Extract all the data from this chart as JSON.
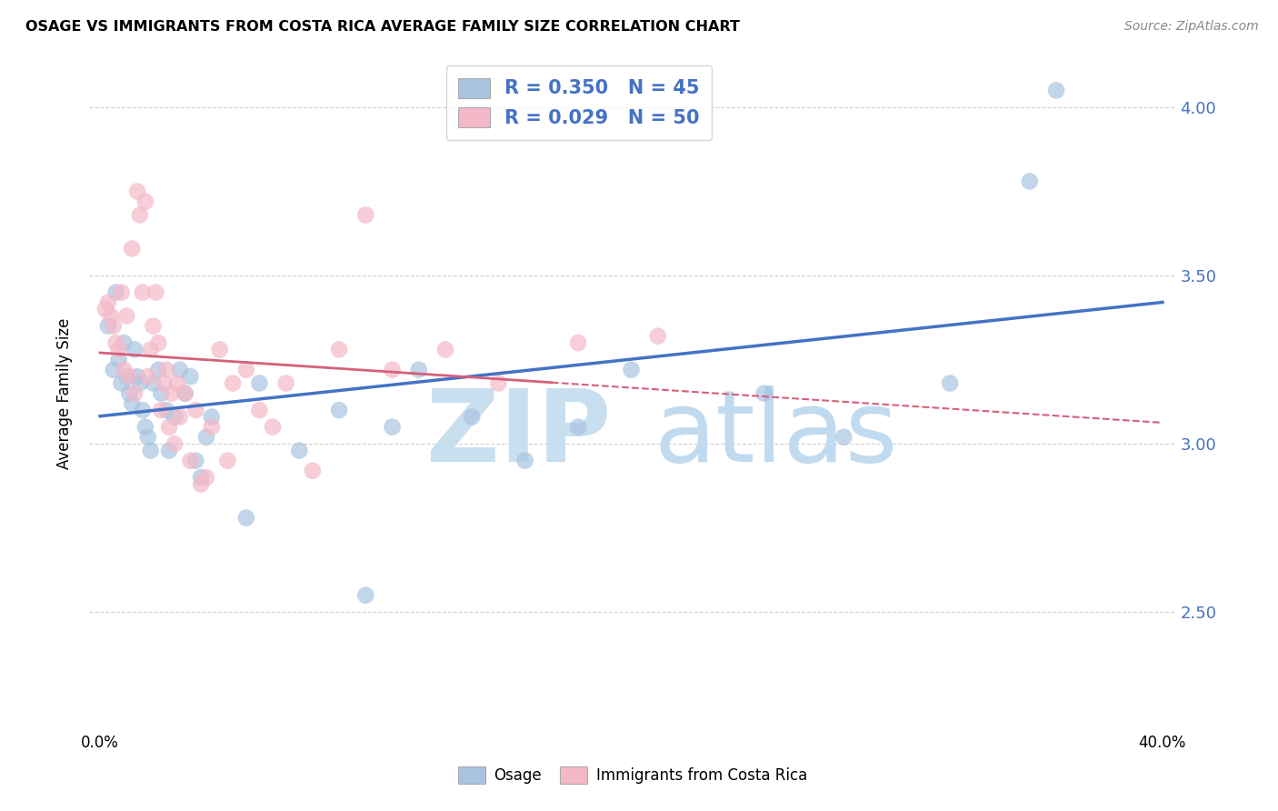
{
  "title": "OSAGE VS IMMIGRANTS FROM COSTA RICA AVERAGE FAMILY SIZE CORRELATION CHART",
  "source": "Source: ZipAtlas.com",
  "ylabel": "Average Family Size",
  "ylim": [
    2.15,
    4.15
  ],
  "xlim": [
    -0.004,
    0.405
  ],
  "yticks": [
    2.5,
    3.0,
    3.5,
    4.0
  ],
  "xtick_positions": [
    0.0,
    0.05,
    0.1,
    0.15,
    0.2,
    0.25,
    0.3,
    0.35,
    0.4
  ],
  "xtick_labels": [
    "0.0%",
    "",
    "",
    "",
    "",
    "",
    "",
    "",
    "40.0%"
  ],
  "legend_color_blue": "#a8c4e0",
  "legend_color_pink": "#f4b8c8",
  "scatter_color_blue": "#a8c4e0",
  "scatter_color_pink": "#f4b8c8",
  "line_color_blue": "#4472c4",
  "line_color_pink": "#d4607a",
  "watermark_color": "#c8dff0",
  "legend_r1_text": "R = 0.350   N = 45",
  "legend_r2_text": "R = 0.029   N = 50",
  "bottom_legend1": "Osage",
  "bottom_legend2": "Immigrants from Costa Rica",
  "osage_x": [
    0.003,
    0.005,
    0.006,
    0.007,
    0.008,
    0.009,
    0.01,
    0.011,
    0.012,
    0.013,
    0.014,
    0.015,
    0.016,
    0.017,
    0.018,
    0.019,
    0.02,
    0.022,
    0.023,
    0.025,
    0.026,
    0.028,
    0.03,
    0.032,
    0.034,
    0.036,
    0.038,
    0.04,
    0.042,
    0.055,
    0.06,
    0.075,
    0.09,
    0.1,
    0.11,
    0.12,
    0.14,
    0.16,
    0.18,
    0.2,
    0.25,
    0.28,
    0.32,
    0.35,
    0.36
  ],
  "osage_y": [
    3.35,
    3.22,
    3.45,
    3.25,
    3.18,
    3.3,
    3.2,
    3.15,
    3.12,
    3.28,
    3.2,
    3.18,
    3.1,
    3.05,
    3.02,
    2.98,
    3.18,
    3.22,
    3.15,
    3.1,
    2.98,
    3.08,
    3.22,
    3.15,
    3.2,
    2.95,
    2.9,
    3.02,
    3.08,
    2.78,
    3.18,
    2.98,
    3.1,
    2.55,
    3.05,
    3.22,
    3.08,
    2.95,
    3.05,
    3.22,
    3.15,
    3.02,
    3.18,
    3.78,
    4.05
  ],
  "costa_rica_x": [
    0.002,
    0.003,
    0.004,
    0.005,
    0.006,
    0.007,
    0.008,
    0.009,
    0.01,
    0.011,
    0.012,
    0.013,
    0.014,
    0.015,
    0.016,
    0.017,
    0.018,
    0.019,
    0.02,
    0.021,
    0.022,
    0.023,
    0.024,
    0.025,
    0.026,
    0.027,
    0.028,
    0.029,
    0.03,
    0.032,
    0.034,
    0.036,
    0.038,
    0.04,
    0.042,
    0.045,
    0.048,
    0.05,
    0.055,
    0.06,
    0.065,
    0.07,
    0.08,
    0.09,
    0.1,
    0.11,
    0.13,
    0.15,
    0.18,
    0.21
  ],
  "costa_rica_y": [
    3.4,
    3.42,
    3.38,
    3.35,
    3.3,
    3.28,
    3.45,
    3.22,
    3.38,
    3.2,
    3.58,
    3.15,
    3.75,
    3.68,
    3.45,
    3.72,
    3.2,
    3.28,
    3.35,
    3.45,
    3.3,
    3.1,
    3.18,
    3.22,
    3.05,
    3.15,
    3.0,
    3.18,
    3.08,
    3.15,
    2.95,
    3.1,
    2.88,
    2.9,
    3.05,
    3.28,
    2.95,
    3.18,
    3.22,
    3.1,
    3.05,
    3.18,
    2.92,
    3.28,
    3.68,
    3.22,
    3.28,
    3.18,
    3.3,
    3.32
  ]
}
